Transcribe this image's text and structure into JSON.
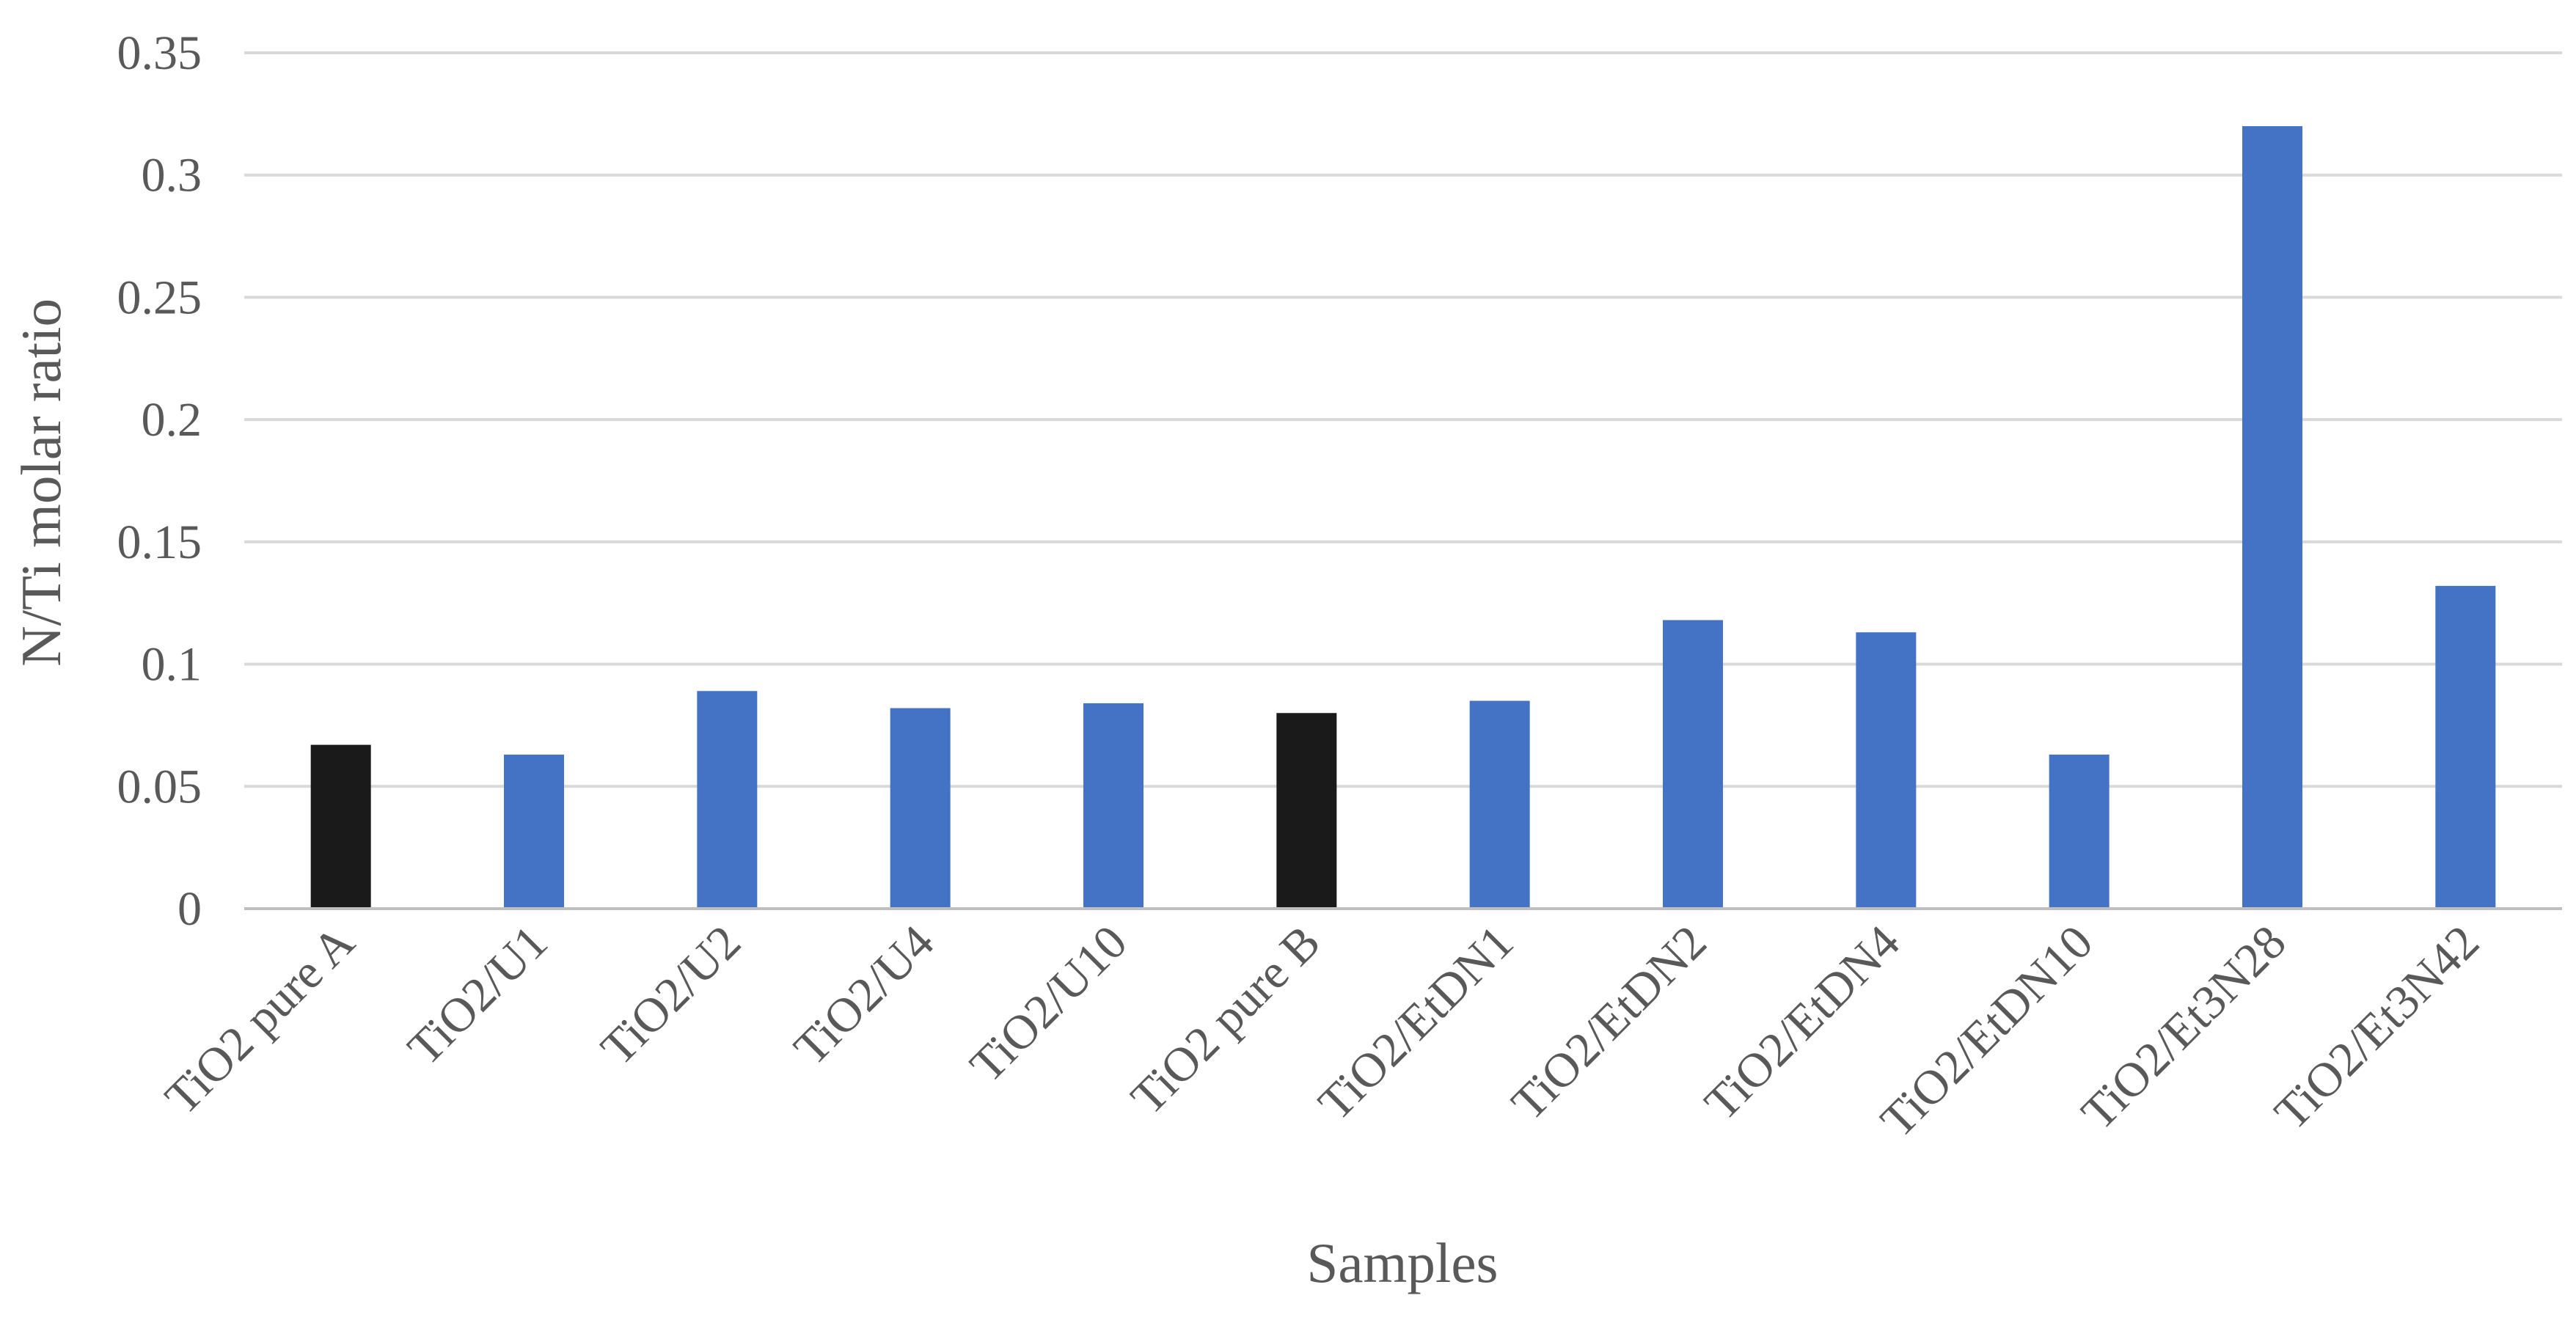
{
  "chart_data": {
    "type": "bar",
    "title": "",
    "xlabel": "Samples",
    "ylabel": "N/Ti molar ratio",
    "ylim": [
      0,
      0.35
    ],
    "y_ticks": [
      {
        "value": 0,
        "label": "0"
      },
      {
        "value": 0.05,
        "label": "0.05"
      },
      {
        "value": 0.1,
        "label": "0.1"
      },
      {
        "value": 0.15,
        "label": "0.15"
      },
      {
        "value": 0.2,
        "label": "0.2"
      },
      {
        "value": 0.25,
        "label": "0.25"
      },
      {
        "value": 0.3,
        "label": "0.3"
      },
      {
        "value": 0.35,
        "label": "0.35"
      }
    ],
    "grid": true,
    "legend": "none",
    "categories": [
      "TiO2 pure A",
      "TiO2/U1",
      "TiO2/U2",
      "TiO2/U4",
      "TiO2/U10",
      "TiO2 pure B",
      "TiO2/EtDN1",
      "TiO2/EtDN2",
      "TiO2/EtDN4",
      "TiO2/EtDN10",
      "TiO2/Et3N28",
      "TiO2/Et3N42"
    ],
    "values": [
      0.067,
      0.063,
      0.089,
      0.082,
      0.084,
      0.08,
      0.085,
      0.118,
      0.113,
      0.063,
      0.32,
      0.132
    ],
    "bar_colors": [
      "#1a1a1a",
      "#4472c4",
      "#4472c4",
      "#4472c4",
      "#4472c4",
      "#1a1a1a",
      "#4472c4",
      "#4472c4",
      "#4472c4",
      "#4472c4",
      "#4472c4",
      "#4472c4"
    ]
  }
}
